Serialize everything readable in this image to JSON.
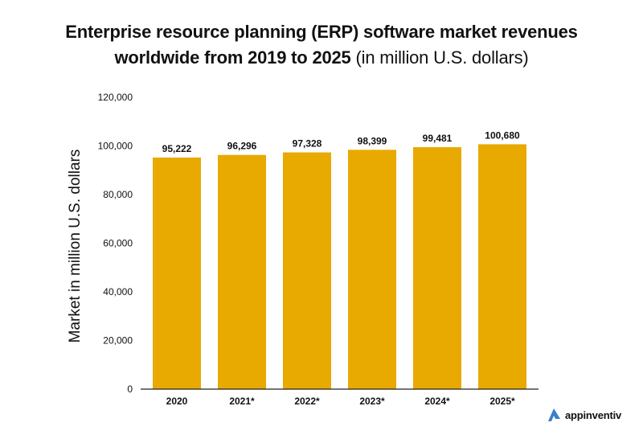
{
  "title": {
    "bold": "Enterprise resource planning (ERP) software market revenues worldwide from 2019 to 2025",
    "line1": "Enterprise resource planning (ERP) software market revenues",
    "line2_bold": "worldwide from 2019 to 2025",
    "line2_light": " (in million U.S. dollars)"
  },
  "brand": {
    "name": "appinventiv",
    "icon": "appinventiv-logo-icon",
    "color": "#3a7fc8"
  },
  "chart_data": {
    "type": "bar",
    "title": "Enterprise resource planning (ERP) software market revenues worldwide from 2019 to 2025 (in million U.S. dollars)",
    "xlabel": "",
    "ylabel": "Market in million U.S. dollars",
    "categories": [
      "2020",
      "2021*",
      "2022*",
      "2023*",
      "2024*",
      "2025*"
    ],
    "values": [
      95222,
      96296,
      97328,
      98399,
      99481,
      100680
    ],
    "data_labels": [
      "95,222",
      "96,296",
      "97,328",
      "98,399",
      "99,481",
      "100,680"
    ],
    "ylim": [
      0,
      120000
    ],
    "yticks": [
      0,
      20000,
      40000,
      60000,
      80000,
      100000,
      120000
    ],
    "ytick_labels": [
      "0",
      "20,000",
      "40,000",
      "60,000",
      "80,000",
      "100,000",
      "120,000"
    ],
    "grid": false,
    "legend": "none",
    "bar_color": "#e8a900"
  }
}
